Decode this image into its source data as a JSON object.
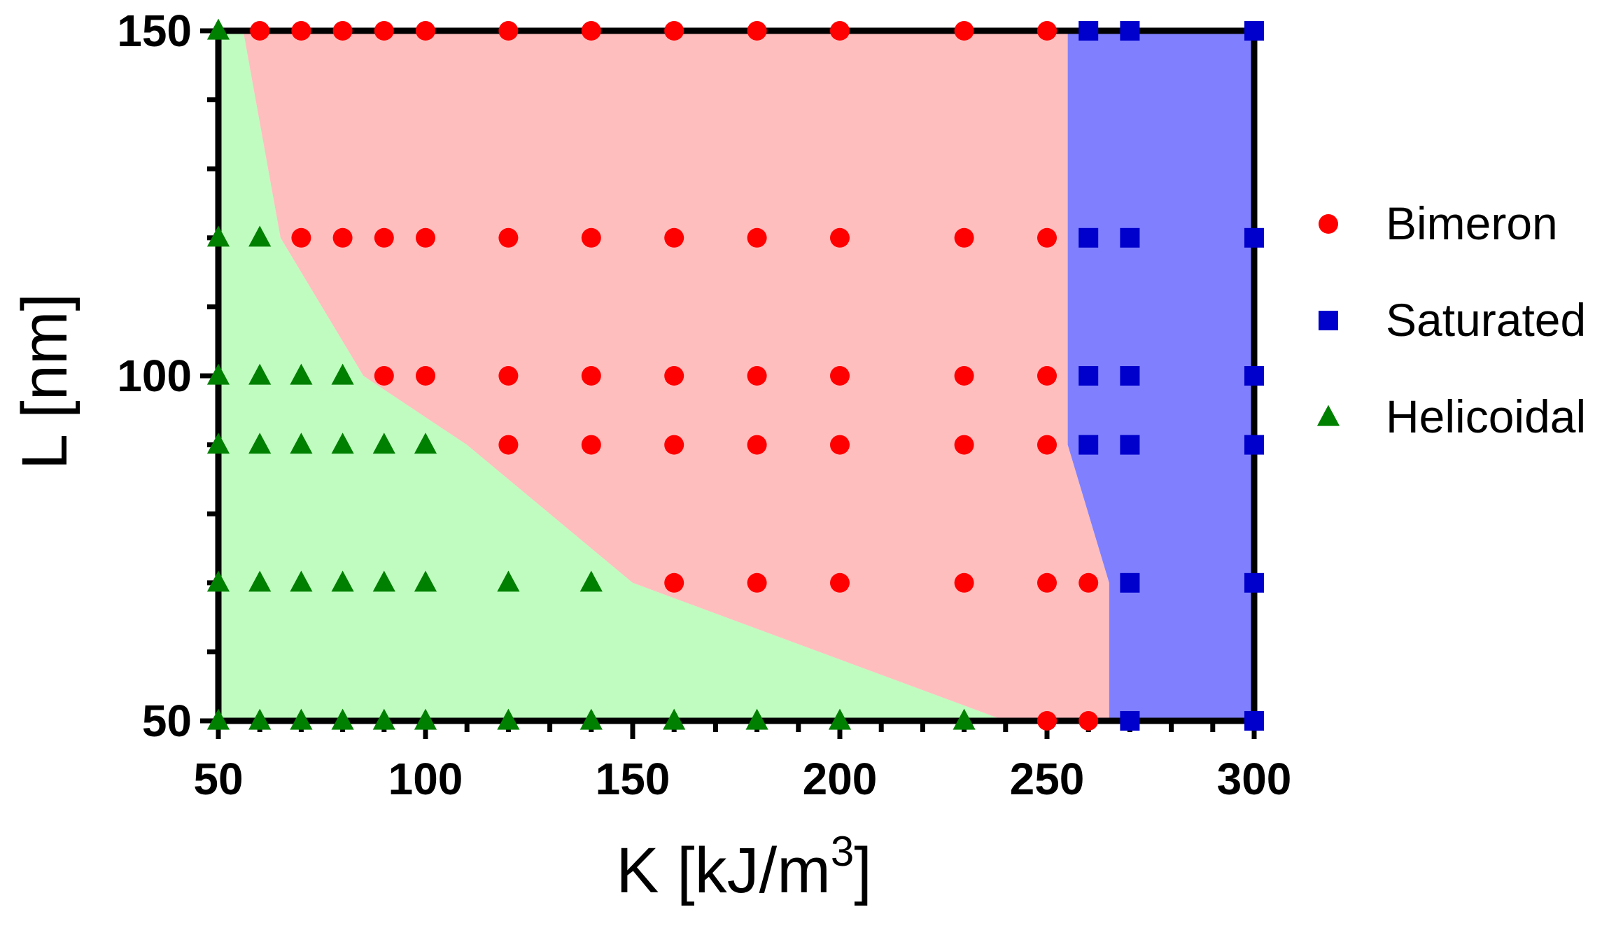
{
  "chart_data": {
    "type": "scatter",
    "title": "",
    "xlabel": "K [kJ/m",
    "xlabel_superscript": "3",
    "xlabel_suffix": "]",
    "ylabel": "L [nm]",
    "xlim": [
      50,
      300
    ],
    "ylim": [
      50,
      150
    ],
    "x_major_ticks": [
      50,
      100,
      150,
      200,
      250,
      300
    ],
    "x_minor_step": 10,
    "y_major_ticks": [
      50,
      100,
      150
    ],
    "y_minor_step": 10,
    "grid": false,
    "legend_position": "right",
    "series": [
      {
        "name": "Bimeron",
        "marker": "circle",
        "color": "#ff0000",
        "points": [
          [
            60,
            150
          ],
          [
            70,
            150
          ],
          [
            80,
            150
          ],
          [
            90,
            150
          ],
          [
            100,
            150
          ],
          [
            120,
            150
          ],
          [
            140,
            150
          ],
          [
            160,
            150
          ],
          [
            180,
            150
          ],
          [
            200,
            150
          ],
          [
            230,
            150
          ],
          [
            250,
            150
          ],
          [
            70,
            120
          ],
          [
            80,
            120
          ],
          [
            90,
            120
          ],
          [
            100,
            120
          ],
          [
            120,
            120
          ],
          [
            140,
            120
          ],
          [
            160,
            120
          ],
          [
            180,
            120
          ],
          [
            200,
            120
          ],
          [
            230,
            120
          ],
          [
            250,
            120
          ],
          [
            90,
            100
          ],
          [
            100,
            100
          ],
          [
            120,
            100
          ],
          [
            140,
            100
          ],
          [
            160,
            100
          ],
          [
            180,
            100
          ],
          [
            200,
            100
          ],
          [
            230,
            100
          ],
          [
            250,
            100
          ],
          [
            120,
            90
          ],
          [
            140,
            90
          ],
          [
            160,
            90
          ],
          [
            180,
            90
          ],
          [
            200,
            90
          ],
          [
            230,
            90
          ],
          [
            250,
            90
          ],
          [
            160,
            70
          ],
          [
            180,
            70
          ],
          [
            200,
            70
          ],
          [
            230,
            70
          ],
          [
            250,
            70
          ],
          [
            260,
            70
          ],
          [
            250,
            50
          ],
          [
            260,
            50
          ]
        ]
      },
      {
        "name": "Saturated",
        "marker": "square",
        "color": "#0000cc",
        "points": [
          [
            260,
            150
          ],
          [
            270,
            150
          ],
          [
            300,
            150
          ],
          [
            260,
            120
          ],
          [
            270,
            120
          ],
          [
            300,
            120
          ],
          [
            260,
            100
          ],
          [
            270,
            100
          ],
          [
            300,
            100
          ],
          [
            260,
            90
          ],
          [
            270,
            90
          ],
          [
            300,
            90
          ],
          [
            270,
            70
          ],
          [
            300,
            70
          ],
          [
            270,
            50
          ],
          [
            300,
            50
          ]
        ]
      },
      {
        "name": "Helicoidal",
        "marker": "triangle",
        "color": "#008000",
        "points": [
          [
            50,
            150
          ],
          [
            50,
            120
          ],
          [
            60,
            120
          ],
          [
            50,
            100
          ],
          [
            60,
            100
          ],
          [
            70,
            100
          ],
          [
            80,
            100
          ],
          [
            50,
            90
          ],
          [
            60,
            90
          ],
          [
            70,
            90
          ],
          [
            80,
            90
          ],
          [
            90,
            90
          ],
          [
            100,
            90
          ],
          [
            50,
            70
          ],
          [
            60,
            70
          ],
          [
            70,
            70
          ],
          [
            80,
            70
          ],
          [
            90,
            70
          ],
          [
            100,
            70
          ],
          [
            120,
            70
          ],
          [
            140,
            70
          ],
          [
            50,
            50
          ],
          [
            60,
            50
          ],
          [
            70,
            50
          ],
          [
            80,
            50
          ],
          [
            90,
            50
          ],
          [
            100,
            50
          ],
          [
            120,
            50
          ],
          [
            140,
            50
          ],
          [
            160,
            50
          ],
          [
            180,
            50
          ],
          [
            200,
            50
          ],
          [
            230,
            50
          ]
        ]
      }
    ],
    "regions": [
      {
        "name": "Helicoidal",
        "color": "#c0fcc0",
        "polygon": [
          [
            50,
            50
          ],
          [
            50,
            150
          ],
          [
            56,
            150
          ],
          [
            65,
            120
          ],
          [
            85,
            100
          ],
          [
            110,
            90
          ],
          [
            150,
            70
          ],
          [
            240,
            50
          ]
        ]
      },
      {
        "name": "Bimeron",
        "color": "#ffbebe",
        "polygon": [
          [
            56,
            150
          ],
          [
            255,
            150
          ],
          [
            255,
            90
          ],
          [
            265,
            70
          ],
          [
            265,
            50
          ],
          [
            240,
            50
          ],
          [
            150,
            70
          ],
          [
            110,
            90
          ],
          [
            85,
            100
          ],
          [
            65,
            120
          ]
        ]
      },
      {
        "name": "Saturated",
        "color": "#8080ff",
        "polygon": [
          [
            255,
            150
          ],
          [
            300,
            150
          ],
          [
            300,
            50
          ],
          [
            265,
            50
          ],
          [
            265,
            70
          ],
          [
            255,
            90
          ]
        ]
      }
    ]
  }
}
